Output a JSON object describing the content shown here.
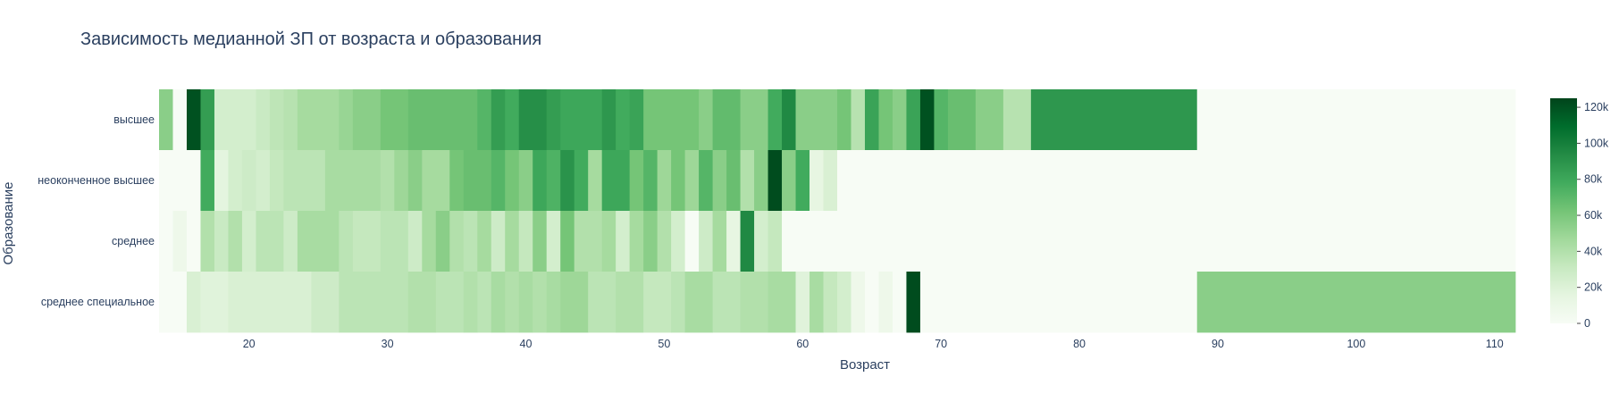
{
  "chart_data": {
    "type": "heatmap",
    "title": "Зависимость медианной ЗП от возраста и образования",
    "xlabel": "Возраст",
    "ylabel": "Образование",
    "xlim": [
      13.5,
      111.5
    ],
    "x_ticks": [
      20,
      30,
      40,
      50,
      60,
      70,
      80,
      90,
      100,
      110
    ],
    "y_categories": [
      "высшее",
      "неоконченное высшее",
      "среднее",
      "среднее специальное"
    ],
    "colorscale": [
      "#f7fcf5",
      "#e5f5e0",
      "#c7e9c0",
      "#a1d99b",
      "#74c476",
      "#41ab5d",
      "#238b45",
      "#006d2c",
      "#00441b"
    ],
    "zmin": 0,
    "zmax": 125000,
    "colorbar_ticks": [
      {
        "value": 0,
        "label": "0"
      },
      {
        "value": 20000,
        "label": "20k"
      },
      {
        "value": 40000,
        "label": "40k"
      },
      {
        "value": 60000,
        "label": "60k"
      },
      {
        "value": 80000,
        "label": "80k"
      },
      {
        "value": 100000,
        "label": "100k"
      },
      {
        "value": 120000,
        "label": "120k"
      }
    ],
    "rows": [
      {
        "category": "высшее",
        "cells": [
          {
            "x0": 13.5,
            "x1": 14.5,
            "z": 55000
          },
          {
            "x0": 14.5,
            "x1": 15.5,
            "z": 0
          },
          {
            "x0": 15.5,
            "x1": 16.5,
            "z": 120000
          },
          {
            "x0": 16.5,
            "x1": 17.5,
            "z": 85000
          },
          {
            "x0": 17.5,
            "x1": 20.5,
            "z": 25000
          },
          {
            "x0": 20.5,
            "x1": 21.5,
            "z": 30000
          },
          {
            "x0": 21.5,
            "x1": 22.5,
            "z": 35000
          },
          {
            "x0": 22.5,
            "x1": 23.5,
            "z": 38000
          },
          {
            "x0": 23.5,
            "x1": 26.5,
            "z": 45000
          },
          {
            "x0": 26.5,
            "x1": 27.5,
            "z": 50000
          },
          {
            "x0": 27.5,
            "x1": 29.5,
            "z": 55000
          },
          {
            "x0": 29.5,
            "x1": 31.5,
            "z": 62000
          },
          {
            "x0": 31.5,
            "x1": 36.5,
            "z": 66000
          },
          {
            "x0": 36.5,
            "x1": 37.5,
            "z": 72000
          },
          {
            "x0": 37.5,
            "x1": 38.5,
            "z": 85000
          },
          {
            "x0": 38.5,
            "x1": 39.5,
            "z": 78000
          },
          {
            "x0": 39.5,
            "x1": 41.5,
            "z": 92000
          },
          {
            "x0": 41.5,
            "x1": 42.5,
            "z": 85000
          },
          {
            "x0": 42.5,
            "x1": 45.5,
            "z": 80000
          },
          {
            "x0": 45.5,
            "x1": 46.5,
            "z": 88000
          },
          {
            "x0": 46.5,
            "x1": 47.5,
            "z": 78000
          },
          {
            "x0": 47.5,
            "x1": 48.5,
            "z": 82000
          },
          {
            "x0": 48.5,
            "x1": 52.5,
            "z": 62000
          },
          {
            "x0": 52.5,
            "x1": 53.5,
            "z": 55000
          },
          {
            "x0": 53.5,
            "x1": 55.5,
            "z": 68000
          },
          {
            "x0": 55.5,
            "x1": 57.5,
            "z": 55000
          },
          {
            "x0": 57.5,
            "x1": 58.5,
            "z": 78000
          },
          {
            "x0": 58.5,
            "x1": 59.5,
            "z": 95000
          },
          {
            "x0": 59.5,
            "x1": 62.5,
            "z": 55000
          },
          {
            "x0": 62.5,
            "x1": 63.5,
            "z": 62000
          },
          {
            "x0": 63.5,
            "x1": 64.5,
            "z": 38000
          },
          {
            "x0": 64.5,
            "x1": 65.5,
            "z": 82000
          },
          {
            "x0": 65.5,
            "x1": 66.5,
            "z": 62000
          },
          {
            "x0": 66.5,
            "x1": 67.5,
            "z": 55000
          },
          {
            "x0": 67.5,
            "x1": 68.5,
            "z": 82000
          },
          {
            "x0": 68.5,
            "x1": 69.5,
            "z": 120000
          },
          {
            "x0": 69.5,
            "x1": 70.5,
            "z": 72000
          },
          {
            "x0": 70.5,
            "x1": 72.5,
            "z": 66000
          },
          {
            "x0": 72.5,
            "x1": 74.5,
            "z": 55000
          },
          {
            "x0": 74.5,
            "x1": 76.5,
            "z": 38000
          },
          {
            "x0": 76.5,
            "x1": 88.5,
            "z": 88000
          },
          {
            "x0": 88.5,
            "x1": 111.5,
            "z": 0
          }
        ]
      },
      {
        "category": "неоконченное высшее",
        "cells": [
          {
            "x0": 13.5,
            "x1": 16.5,
            "z": 0
          },
          {
            "x0": 16.5,
            "x1": 17.5,
            "z": 78000
          },
          {
            "x0": 17.5,
            "x1": 18.5,
            "z": 16000
          },
          {
            "x0": 18.5,
            "x1": 19.5,
            "z": 25000
          },
          {
            "x0": 19.5,
            "x1": 20.5,
            "z": 28000
          },
          {
            "x0": 20.5,
            "x1": 21.5,
            "z": 25000
          },
          {
            "x0": 21.5,
            "x1": 22.5,
            "z": 32000
          },
          {
            "x0": 22.5,
            "x1": 25.5,
            "z": 36000
          },
          {
            "x0": 25.5,
            "x1": 29.5,
            "z": 44000
          },
          {
            "x0": 29.5,
            "x1": 30.5,
            "z": 40000
          },
          {
            "x0": 30.5,
            "x1": 31.5,
            "z": 48000
          },
          {
            "x0": 31.5,
            "x1": 32.5,
            "z": 55000
          },
          {
            "x0": 32.5,
            "x1": 34.5,
            "z": 45000
          },
          {
            "x0": 34.5,
            "x1": 35.5,
            "z": 62000
          },
          {
            "x0": 35.5,
            "x1": 37.5,
            "z": 66000
          },
          {
            "x0": 37.5,
            "x1": 38.5,
            "z": 72000
          },
          {
            "x0": 38.5,
            "x1": 39.5,
            "z": 62000
          },
          {
            "x0": 39.5,
            "x1": 40.5,
            "z": 55000
          },
          {
            "x0": 40.5,
            "x1": 41.5,
            "z": 80000
          },
          {
            "x0": 41.5,
            "x1": 42.5,
            "z": 74000
          },
          {
            "x0": 42.5,
            "x1": 43.5,
            "z": 90000
          },
          {
            "x0": 43.5,
            "x1": 44.5,
            "z": 78000
          },
          {
            "x0": 44.5,
            "x1": 45.5,
            "z": 45000
          },
          {
            "x0": 45.5,
            "x1": 47.5,
            "z": 80000
          },
          {
            "x0": 47.5,
            "x1": 48.5,
            "z": 62000
          },
          {
            "x0": 48.5,
            "x1": 49.5,
            "z": 72000
          },
          {
            "x0": 49.5,
            "x1": 50.5,
            "z": 48000
          },
          {
            "x0": 50.5,
            "x1": 51.5,
            "z": 62000
          },
          {
            "x0": 51.5,
            "x1": 52.5,
            "z": 48000
          },
          {
            "x0": 52.5,
            "x1": 53.5,
            "z": 72000
          },
          {
            "x0": 53.5,
            "x1": 54.5,
            "z": 55000
          },
          {
            "x0": 54.5,
            "x1": 55.5,
            "z": 66000
          },
          {
            "x0": 55.5,
            "x1": 56.5,
            "z": 40000
          },
          {
            "x0": 56.5,
            "x1": 57.5,
            "z": 55000
          },
          {
            "x0": 57.5,
            "x1": 58.5,
            "z": 122000
          },
          {
            "x0": 58.5,
            "x1": 59.5,
            "z": 55000
          },
          {
            "x0": 59.5,
            "x1": 60.5,
            "z": 78000
          },
          {
            "x0": 60.5,
            "x1": 61.5,
            "z": 14000
          },
          {
            "x0": 61.5,
            "x1": 62.5,
            "z": 22000
          },
          {
            "x0": 62.5,
            "x1": 111.5,
            "z": 0
          }
        ]
      },
      {
        "category": "среднее",
        "cells": [
          {
            "x0": 13.5,
            "x1": 14.5,
            "z": 0
          },
          {
            "x0": 14.5,
            "x1": 15.5,
            "z": 8000
          },
          {
            "x0": 15.5,
            "x1": 16.5,
            "z": 0
          },
          {
            "x0": 16.5,
            "x1": 17.5,
            "z": 40000
          },
          {
            "x0": 17.5,
            "x1": 18.5,
            "z": 30000
          },
          {
            "x0": 18.5,
            "x1": 19.5,
            "z": 40000
          },
          {
            "x0": 19.5,
            "x1": 20.5,
            "z": 25000
          },
          {
            "x0": 20.5,
            "x1": 22.5,
            "z": 36000
          },
          {
            "x0": 22.5,
            "x1": 23.5,
            "z": 28000
          },
          {
            "x0": 23.5,
            "x1": 26.5,
            "z": 44000
          },
          {
            "x0": 26.5,
            "x1": 27.5,
            "z": 36000
          },
          {
            "x0": 27.5,
            "x1": 29.5,
            "z": 32000
          },
          {
            "x0": 29.5,
            "x1": 31.5,
            "z": 36000
          },
          {
            "x0": 31.5,
            "x1": 32.5,
            "z": 28000
          },
          {
            "x0": 32.5,
            "x1": 33.5,
            "z": 45000
          },
          {
            "x0": 33.5,
            "x1": 34.5,
            "z": 55000
          },
          {
            "x0": 34.5,
            "x1": 35.5,
            "z": 40000
          },
          {
            "x0": 35.5,
            "x1": 36.5,
            "z": 36000
          },
          {
            "x0": 36.5,
            "x1": 37.5,
            "z": 45000
          },
          {
            "x0": 37.5,
            "x1": 38.5,
            "z": 28000
          },
          {
            "x0": 38.5,
            "x1": 39.5,
            "z": 45000
          },
          {
            "x0": 39.5,
            "x1": 40.5,
            "z": 32000
          },
          {
            "x0": 40.5,
            "x1": 41.5,
            "z": 55000
          },
          {
            "x0": 41.5,
            "x1": 42.5,
            "z": 25000
          },
          {
            "x0": 42.5,
            "x1": 43.5,
            "z": 62000
          },
          {
            "x0": 43.5,
            "x1": 45.5,
            "z": 40000
          },
          {
            "x0": 45.5,
            "x1": 46.5,
            "z": 45000
          },
          {
            "x0": 46.5,
            "x1": 47.5,
            "z": 25000
          },
          {
            "x0": 47.5,
            "x1": 48.5,
            "z": 45000
          },
          {
            "x0": 48.5,
            "x1": 49.5,
            "z": 55000
          },
          {
            "x0": 49.5,
            "x1": 50.5,
            "z": 40000
          },
          {
            "x0": 50.5,
            "x1": 51.5,
            "z": 25000
          },
          {
            "x0": 51.5,
            "x1": 52.5,
            "z": 0
          },
          {
            "x0": 52.5,
            "x1": 53.5,
            "z": 28000
          },
          {
            "x0": 53.5,
            "x1": 54.5,
            "z": 45000
          },
          {
            "x0": 54.5,
            "x1": 55.5,
            "z": 14000
          },
          {
            "x0": 55.5,
            "x1": 56.5,
            "z": 95000
          },
          {
            "x0": 56.5,
            "x1": 57.5,
            "z": 25000
          },
          {
            "x0": 57.5,
            "x1": 58.5,
            "z": 32000
          },
          {
            "x0": 58.5,
            "x1": 111.5,
            "z": 0
          }
        ]
      },
      {
        "category": "среднее специальное",
        "cells": [
          {
            "x0": 13.5,
            "x1": 15.5,
            "z": 0
          },
          {
            "x0": 15.5,
            "x1": 16.5,
            "z": 22000
          },
          {
            "x0": 16.5,
            "x1": 18.5,
            "z": 18000
          },
          {
            "x0": 18.5,
            "x1": 24.5,
            "z": 22000
          },
          {
            "x0": 24.5,
            "x1": 26.5,
            "z": 28000
          },
          {
            "x0": 26.5,
            "x1": 31.5,
            "z": 36000
          },
          {
            "x0": 31.5,
            "x1": 33.5,
            "z": 40000
          },
          {
            "x0": 33.5,
            "x1": 35.5,
            "z": 36000
          },
          {
            "x0": 35.5,
            "x1": 36.5,
            "z": 40000
          },
          {
            "x0": 36.5,
            "x1": 37.5,
            "z": 36000
          },
          {
            "x0": 37.5,
            "x1": 38.5,
            "z": 44000
          },
          {
            "x0": 38.5,
            "x1": 39.5,
            "z": 40000
          },
          {
            "x0": 39.5,
            "x1": 40.5,
            "z": 44000
          },
          {
            "x0": 40.5,
            "x1": 41.5,
            "z": 40000
          },
          {
            "x0": 41.5,
            "x1": 42.5,
            "z": 44000
          },
          {
            "x0": 42.5,
            "x1": 44.5,
            "z": 48000
          },
          {
            "x0": 44.5,
            "x1": 46.5,
            "z": 36000
          },
          {
            "x0": 46.5,
            "x1": 48.5,
            "z": 40000
          },
          {
            "x0": 48.5,
            "x1": 50.5,
            "z": 32000
          },
          {
            "x0": 50.5,
            "x1": 51.5,
            "z": 36000
          },
          {
            "x0": 51.5,
            "x1": 53.5,
            "z": 44000
          },
          {
            "x0": 53.5,
            "x1": 55.5,
            "z": 36000
          },
          {
            "x0": 55.5,
            "x1": 57.5,
            "z": 40000
          },
          {
            "x0": 57.5,
            "x1": 59.5,
            "z": 44000
          },
          {
            "x0": 59.5,
            "x1": 60.5,
            "z": 18000
          },
          {
            "x0": 60.5,
            "x1": 61.5,
            "z": 44000
          },
          {
            "x0": 61.5,
            "x1": 62.5,
            "z": 32000
          },
          {
            "x0": 62.5,
            "x1": 63.5,
            "z": 25000
          },
          {
            "x0": 63.5,
            "x1": 64.5,
            "z": 8000
          },
          {
            "x0": 64.5,
            "x1": 65.5,
            "z": 0
          },
          {
            "x0": 65.5,
            "x1": 66.5,
            "z": 8000
          },
          {
            "x0": 66.5,
            "x1": 67.5,
            "z": 0
          },
          {
            "x0": 67.5,
            "x1": 68.5,
            "z": 122000
          },
          {
            "x0": 68.5,
            "x1": 88.5,
            "z": 0
          },
          {
            "x0": 88.5,
            "x1": 111.5,
            "z": 55000
          }
        ]
      }
    ]
  }
}
